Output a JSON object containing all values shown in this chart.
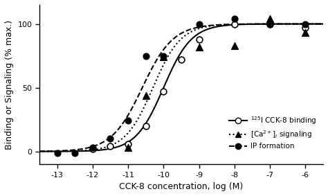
{
  "title": "",
  "xlabel": "CCK-8 concentration, log (M)",
  "ylabel": "Binding or Signaling (% max.)",
  "xlim": [
    -13.5,
    -5.5
  ],
  "ylim": [
    -10,
    115
  ],
  "xticks": [
    -13,
    -12,
    -11,
    -10,
    -9,
    -8,
    -7,
    -6
  ],
  "yticks": [
    0,
    50,
    100
  ],
  "binding_points_x": [
    -12,
    -11.5,
    -11,
    -10.5,
    -10,
    -9.5,
    -9,
    -8,
    -7,
    -6
  ],
  "binding_points_y": [
    2,
    4,
    6,
    20,
    47,
    72,
    88,
    100,
    100,
    97
  ],
  "ca_points_x": [
    -11,
    -10.5,
    -10,
    -9,
    -8,
    -7,
    -6
  ],
  "ca_points_y": [
    3,
    44,
    74,
    82,
    83,
    104,
    93
  ],
  "ip_points_x": [
    -13,
    -12.5,
    -12,
    -11.5,
    -11,
    -10.5,
    -10,
    -9,
    -8,
    -7,
    -6
  ],
  "ip_points_y": [
    -1,
    -1,
    3,
    10,
    24,
    75,
    75,
    100,
    104,
    100,
    100
  ],
  "ec50_binding": -10.0,
  "ec50_ca": -10.3,
  "ec50_ip": -10.6,
  "background_color": "#ffffff",
  "line_color": "#000000",
  "marker_color_open": "#ffffff",
  "marker_color_filled": "#000000"
}
